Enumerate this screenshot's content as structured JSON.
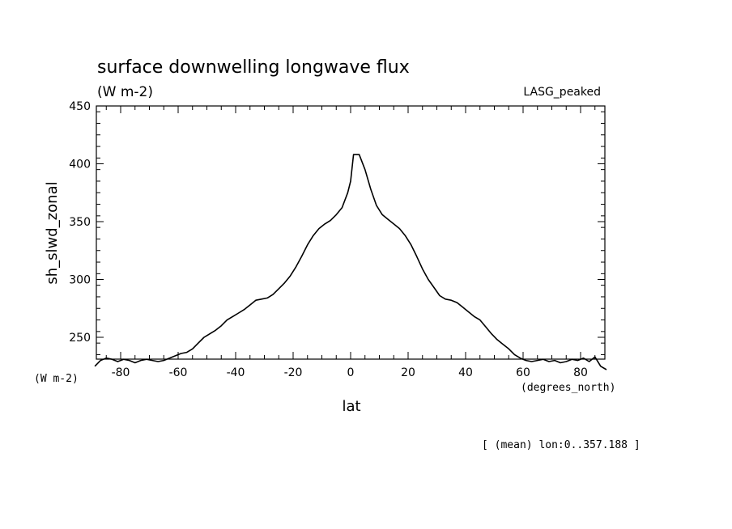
{
  "chart_data": {
    "type": "line",
    "title": "surface downwelling longwave flux",
    "units": "(W m-2)",
    "model_label": "LASG_peaked",
    "ylabel": "sh_slwd_zonal",
    "xlabel": "lat",
    "y_units_label": "(W m-2)",
    "x_units_label": "(degrees_north)",
    "footnote": "[ (mean) lon:0..357.188 ]",
    "xlim": [
      -89,
      89
    ],
    "ylim": [
      230,
      450
    ],
    "x_ticks": [
      -80,
      -60,
      -40,
      -20,
      0,
      20,
      40,
      60,
      80
    ],
    "y_ticks": [
      250,
      300,
      350,
      400,
      450
    ],
    "series": [
      {
        "x": [
          -89,
          -87,
          -85,
          -83,
          -81,
          -79,
          -77,
          -75,
          -73,
          -71,
          -69,
          -67,
          -65,
          -63,
          -61,
          -59,
          -57,
          -55,
          -53,
          -51,
          -49,
          -47,
          -45,
          -43,
          -41,
          -39,
          -37,
          -35,
          -33,
          -31,
          -29,
          -27,
          -25,
          -23,
          -21,
          -19,
          -17,
          -15,
          -13,
          -11,
          -9,
          -7,
          -5,
          -3,
          -1,
          0,
          1,
          3,
          5,
          7,
          9,
          11,
          13,
          15,
          17,
          19,
          21,
          23,
          25,
          27,
          29,
          31,
          33,
          35,
          37,
          39,
          41,
          43,
          45,
          47,
          49,
          51,
          53,
          55,
          57,
          59,
          61,
          63,
          65,
          67,
          69,
          71,
          73,
          75,
          77,
          79,
          81,
          83,
          85,
          87,
          89
        ],
        "y": [
          225,
          230,
          232,
          231,
          229,
          231,
          230,
          228,
          230,
          231,
          230,
          229,
          230,
          232,
          234,
          236,
          237,
          240,
          245,
          250,
          253,
          256,
          260,
          265,
          268,
          271,
          274,
          278,
          282,
          283,
          284,
          287,
          292,
          297,
          303,
          311,
          320,
          330,
          338,
          344,
          348,
          351,
          356,
          362,
          375,
          385,
          408,
          408,
          395,
          378,
          364,
          356,
          352,
          348,
          344,
          338,
          330,
          320,
          309,
          300,
          293,
          286,
          283,
          282,
          280,
          276,
          272,
          268,
          265,
          259,
          253,
          248,
          244,
          240,
          235,
          232,
          230,
          229,
          230,
          231,
          229,
          230,
          228,
          229,
          231,
          230,
          232,
          229,
          233,
          225,
          222
        ]
      }
    ],
    "grid": false
  }
}
